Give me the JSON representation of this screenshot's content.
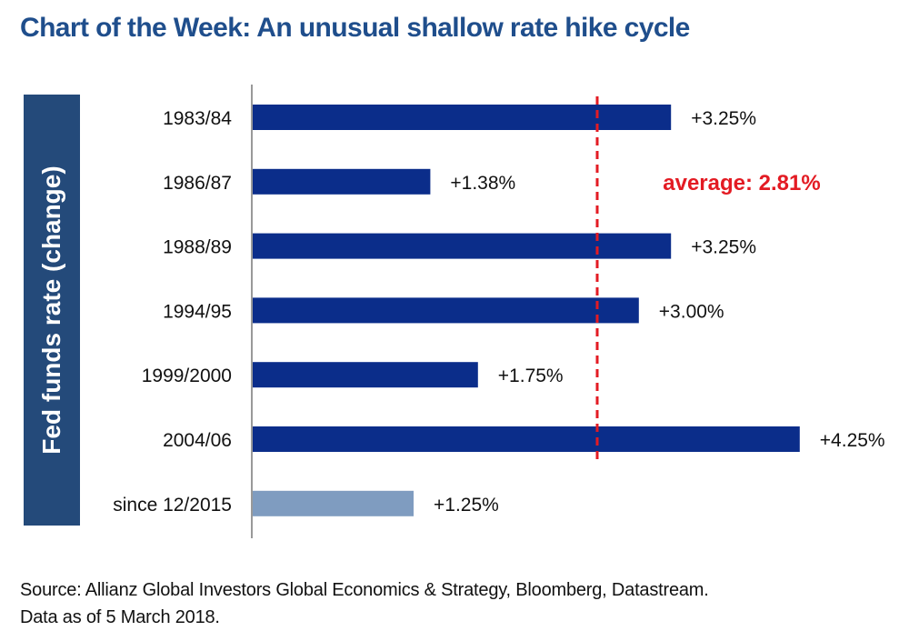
{
  "colors": {
    "title": "#1f4e8c",
    "bar": "#0b2d8a",
    "bar_highlight": "#7f9cc0",
    "average_line": "#e31b23",
    "ylabel_bg": "#244a7a",
    "axis": "#999999"
  },
  "chart_data": {
    "type": "bar",
    "orientation": "horizontal",
    "title": "Chart of the Week: An unusual shallow rate hike cycle",
    "ylabel": "Fed funds rate (change)",
    "categories": [
      "1983/84",
      "1986/87",
      "1988/89",
      "1994/95",
      "1999/2000",
      "2004/06",
      "since 12/2015"
    ],
    "values": [
      3.25,
      1.38,
      3.25,
      3.0,
      1.75,
      4.25,
      1.25
    ],
    "data_labels": [
      "+3.25%",
      "+1.38%",
      "+3.25%",
      "+3.00%",
      "+1.75%",
      "+4.25%",
      "+1.25%"
    ],
    "highlight_index": 6,
    "average": {
      "value": 2.81,
      "label": "average: 2.81%"
    },
    "xlim": [
      0,
      4.4
    ]
  },
  "source": {
    "line1": "Source: Allianz Global Investors Global Economics & Strategy, Bloomberg, Datastream.",
    "line2": "Data as of 5 March 2018."
  }
}
